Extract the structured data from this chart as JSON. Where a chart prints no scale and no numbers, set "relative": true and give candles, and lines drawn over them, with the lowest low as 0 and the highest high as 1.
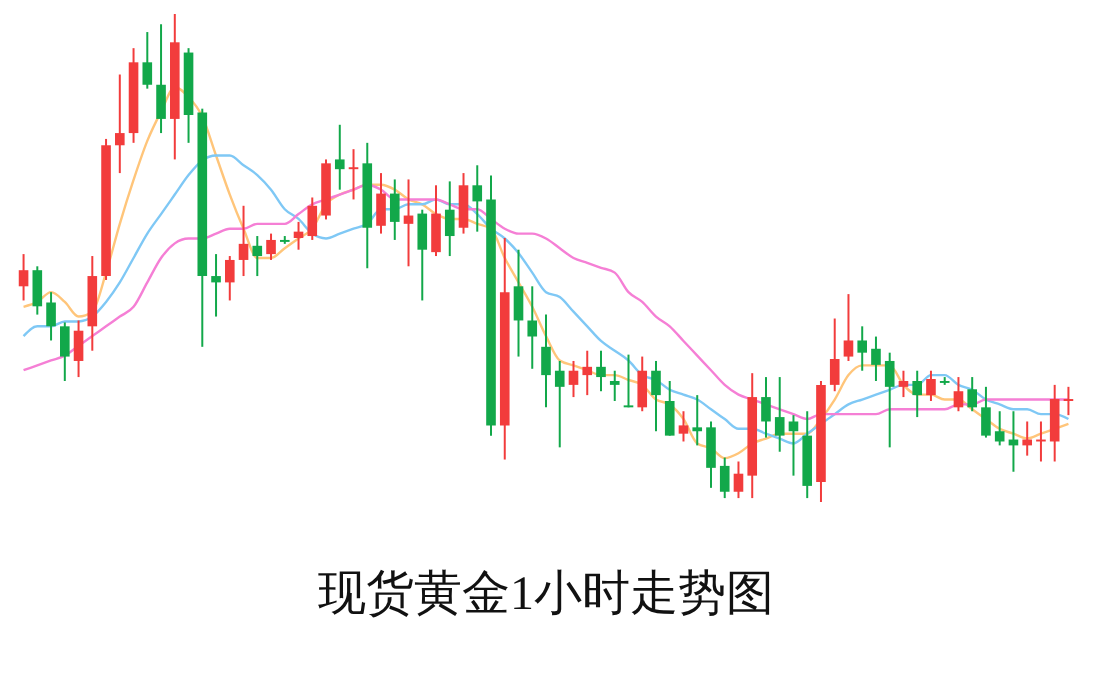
{
  "chart_data": {
    "type": "candlestick",
    "relative": true,
    "title": "现货黄金1小时走势图",
    "categories": [
      null,
      null,
      null,
      null,
      null,
      null,
      null,
      null,
      null,
      null,
      null,
      null,
      null,
      null,
      null,
      null,
      null,
      null,
      null,
      null,
      null,
      null,
      null,
      null,
      null,
      null,
      null,
      null,
      null,
      null,
      null,
      null,
      null,
      null,
      null,
      null,
      null,
      null,
      null,
      null,
      null,
      null,
      null,
      null,
      null,
      null,
      null,
      null,
      null,
      null,
      null,
      null,
      null,
      null,
      null,
      null,
      null,
      null,
      null,
      null,
      null,
      null,
      null,
      null,
      null,
      null,
      null,
      null,
      null,
      null,
      null,
      null,
      null,
      null,
      null,
      null,
      null
    ],
    "ohlc": [
      [
        0.442,
        0.508,
        0.413,
        0.475
      ],
      [
        0.475,
        0.483,
        0.384,
        0.401
      ],
      [
        0.409,
        0.43,
        0.331,
        0.36
      ],
      [
        0.36,
        0.368,
        0.248,
        0.298
      ],
      [
        0.289,
        0.372,
        0.256,
        0.351
      ],
      [
        0.36,
        0.504,
        0.31,
        0.463
      ],
      [
        0.463,
        0.744,
        0.455,
        0.731
      ],
      [
        0.731,
        0.876,
        0.674,
        0.756
      ],
      [
        0.756,
        0.93,
        0.736,
        0.901
      ],
      [
        0.901,
        0.963,
        0.847,
        0.855
      ],
      [
        0.855,
        0.979,
        0.756,
        0.785
      ],
      [
        0.785,
        1.0,
        0.702,
        0.942
      ],
      [
        0.921,
        0.93,
        0.736,
        0.793
      ],
      [
        0.798,
        0.806,
        0.318,
        0.463
      ],
      [
        0.463,
        0.508,
        0.38,
        0.45
      ],
      [
        0.45,
        0.504,
        0.413,
        0.496
      ],
      [
        0.496,
        0.607,
        0.463,
        0.529
      ],
      [
        0.525,
        0.545,
        0.463,
        0.504
      ],
      [
        0.508,
        0.55,
        0.496,
        0.537
      ],
      [
        0.537,
        0.545,
        0.529,
        0.533
      ],
      [
        0.541,
        0.574,
        0.517,
        0.554
      ],
      [
        0.545,
        0.624,
        0.537,
        0.607
      ],
      [
        0.587,
        0.702,
        0.579,
        0.694
      ],
      [
        0.702,
        0.773,
        0.64,
        0.682
      ],
      [
        0.682,
        0.723,
        0.62,
        0.686
      ],
      [
        0.694,
        0.736,
        0.479,
        0.562
      ],
      [
        0.566,
        0.674,
        0.55,
        0.632
      ],
      [
        0.632,
        0.661,
        0.537,
        0.574
      ],
      [
        0.57,
        0.661,
        0.483,
        0.587
      ],
      [
        0.591,
        0.599,
        0.413,
        0.517
      ],
      [
        0.512,
        0.649,
        0.504,
        0.591
      ],
      [
        0.599,
        0.657,
        0.504,
        0.545
      ],
      [
        0.562,
        0.674,
        0.55,
        0.649
      ],
      [
        0.649,
        0.69,
        0.554,
        0.616
      ],
      [
        0.62,
        0.669,
        0.136,
        0.157
      ],
      [
        0.157,
        0.541,
        0.087,
        0.43
      ],
      [
        0.442,
        0.517,
        0.298,
        0.372
      ],
      [
        0.372,
        0.442,
        0.273,
        0.339
      ],
      [
        0.318,
        0.384,
        0.194,
        0.26
      ],
      [
        0.269,
        0.289,
        0.112,
        0.236
      ],
      [
        0.24,
        0.289,
        0.215,
        0.269
      ],
      [
        0.26,
        0.31,
        0.219,
        0.277
      ],
      [
        0.277,
        0.31,
        0.227,
        0.256
      ],
      [
        0.248,
        0.269,
        0.207,
        0.24
      ],
      [
        0.198,
        0.302,
        0.194,
        0.194
      ],
      [
        0.194,
        0.298,
        0.186,
        0.269
      ],
      [
        0.269,
        0.289,
        0.145,
        0.219
      ],
      [
        0.207,
        0.248,
        0.136,
        0.136
      ],
      [
        0.14,
        0.186,
        0.124,
        0.157
      ],
      [
        0.153,
        0.219,
        0.116,
        0.145
      ],
      [
        0.153,
        0.165,
        0.029,
        0.07
      ],
      [
        0.074,
        0.091,
        0.008,
        0.021
      ],
      [
        0.021,
        0.083,
        0.008,
        0.058
      ],
      [
        0.054,
        0.264,
        0.008,
        0.215
      ],
      [
        0.215,
        0.256,
        0.132,
        0.165
      ],
      [
        0.174,
        0.256,
        0.103,
        0.136
      ],
      [
        0.165,
        0.178,
        0.054,
        0.145
      ],
      [
        0.136,
        0.186,
        0.008,
        0.033
      ],
      [
        0.041,
        0.248,
        0.0,
        0.24
      ],
      [
        0.24,
        0.376,
        0.227,
        0.293
      ],
      [
        0.298,
        0.426,
        0.289,
        0.331
      ],
      [
        0.331,
        0.36,
        0.269,
        0.306
      ],
      [
        0.314,
        0.339,
        0.248,
        0.281
      ],
      [
        0.289,
        0.306,
        0.112,
        0.236
      ],
      [
        0.236,
        0.269,
        0.215,
        0.248
      ],
      [
        0.248,
        0.269,
        0.174,
        0.219
      ],
      [
        0.219,
        0.269,
        0.207,
        0.252
      ],
      [
        0.248,
        0.256,
        0.24,
        0.244
      ],
      [
        0.194,
        0.256,
        0.186,
        0.227
      ],
      [
        0.231,
        0.256,
        0.186,
        0.194
      ],
      [
        0.194,
        0.236,
        0.132,
        0.136
      ],
      [
        0.145,
        0.186,
        0.116,
        0.124
      ],
      [
        0.128,
        0.186,
        0.062,
        0.116
      ],
      [
        0.116,
        0.165,
        0.095,
        0.128
      ],
      [
        0.124,
        0.165,
        0.083,
        0.128
      ],
      [
        0.124,
        0.24,
        0.083,
        0.211
      ],
      [
        0.207,
        0.236,
        0.178,
        0.211
      ]
    ],
    "colors": [
      "#f23c3c",
      "#12a84a",
      "#12a84a",
      "#12a84a",
      "#f23c3c",
      "#f23c3c",
      "#f23c3c",
      "#f23c3c",
      "#f23c3c",
      "#12a84a",
      "#12a84a",
      "#f23c3c",
      "#12a84a",
      "#12a84a",
      "#12a84a",
      "#f23c3c",
      "#f23c3c",
      "#12a84a",
      "#f23c3c",
      "#12a84a",
      "#f23c3c",
      "#f23c3c",
      "#f23c3c",
      "#12a84a",
      "#f23c3c",
      "#12a84a",
      "#f23c3c",
      "#12a84a",
      "#f23c3c",
      "#12a84a",
      "#f23c3c",
      "#12a84a",
      "#f23c3c",
      "#12a84a",
      "#12a84a",
      "#f23c3c",
      "#12a84a",
      "#12a84a",
      "#12a84a",
      "#12a84a",
      "#f23c3c",
      "#f23c3c",
      "#12a84a",
      "#12a84a",
      "#12a84a",
      "#f23c3c",
      "#12a84a",
      "#12a84a",
      "#f23c3c",
      "#12a84a",
      "#12a84a",
      "#12a84a",
      "#f23c3c",
      "#f23c3c",
      "#12a84a",
      "#12a84a",
      "#12a84a",
      "#12a84a",
      "#f23c3c",
      "#f23c3c",
      "#f23c3c",
      "#12a84a",
      "#12a84a",
      "#12a84a",
      "#f23c3c",
      "#12a84a",
      "#f23c3c",
      "#12a84a",
      "#f23c3c",
      "#12a84a",
      "#12a84a",
      "#12a84a",
      "#12a84a",
      "#f23c3c",
      "#f23c3c",
      "#f23c3c",
      "#f23c3c"
    ],
    "series": [
      {
        "type": "line",
        "color": "#ffc57a",
        "values": [
          0.4,
          0.41,
          0.43,
          0.41,
          0.38,
          0.39,
          0.47,
          0.57,
          0.66,
          0.74,
          0.8,
          0.85,
          0.83,
          0.79,
          0.71,
          0.63,
          0.56,
          0.5,
          0.5,
          0.52,
          0.54,
          0.56,
          0.61,
          0.63,
          0.64,
          0.65,
          0.65,
          0.64,
          0.62,
          0.61,
          0.59,
          0.58,
          0.58,
          0.57,
          0.56,
          0.5,
          0.45,
          0.4,
          0.34,
          0.29,
          0.28,
          0.27,
          0.26,
          0.26,
          0.25,
          0.24,
          0.21,
          0.2,
          0.17,
          0.12,
          0.11,
          0.09,
          0.1,
          0.12,
          0.13,
          0.14,
          0.14,
          0.14,
          0.17,
          0.21,
          0.26,
          0.28,
          0.28,
          0.28,
          0.24,
          0.22,
          0.22,
          0.21,
          0.21,
          0.19,
          0.17,
          0.15,
          0.14,
          0.13,
          0.14,
          0.15,
          0.16
        ]
      },
      {
        "type": "line",
        "color": "#7fc8f5",
        "values": [
          0.34,
          0.36,
          0.36,
          0.37,
          0.37,
          0.38,
          0.41,
          0.45,
          0.5,
          0.55,
          0.59,
          0.63,
          0.67,
          0.7,
          0.71,
          0.71,
          0.69,
          0.67,
          0.64,
          0.6,
          0.58,
          0.55,
          0.54,
          0.55,
          0.56,
          0.57,
          0.6,
          0.6,
          0.61,
          0.61,
          0.62,
          0.61,
          0.61,
          0.59,
          0.56,
          0.54,
          0.51,
          0.47,
          0.43,
          0.42,
          0.39,
          0.36,
          0.33,
          0.31,
          0.29,
          0.26,
          0.25,
          0.23,
          0.22,
          0.21,
          0.19,
          0.17,
          0.15,
          0.15,
          0.14,
          0.13,
          0.12,
          0.14,
          0.16,
          0.18,
          0.2,
          0.21,
          0.22,
          0.23,
          0.24,
          0.24,
          0.26,
          0.26,
          0.24,
          0.23,
          0.21,
          0.2,
          0.19,
          0.19,
          0.18,
          0.18,
          0.17
        ]
      },
      {
        "type": "line",
        "color": "#f57fd5",
        "values": [
          0.27,
          0.28,
          0.29,
          0.3,
          0.32,
          0.34,
          0.36,
          0.38,
          0.4,
          0.45,
          0.5,
          0.53,
          0.54,
          0.54,
          0.55,
          0.56,
          0.56,
          0.57,
          0.57,
          0.57,
          0.59,
          0.61,
          0.62,
          0.63,
          0.64,
          0.65,
          0.64,
          0.62,
          0.62,
          0.62,
          0.62,
          0.61,
          0.6,
          0.6,
          0.58,
          0.56,
          0.55,
          0.55,
          0.54,
          0.52,
          0.5,
          0.49,
          0.48,
          0.47,
          0.43,
          0.41,
          0.38,
          0.36,
          0.33,
          0.3,
          0.27,
          0.24,
          0.22,
          0.21,
          0.2,
          0.19,
          0.18,
          0.17,
          0.18,
          0.18,
          0.18,
          0.18,
          0.18,
          0.19,
          0.19,
          0.19,
          0.19,
          0.19,
          0.2,
          0.2,
          0.21,
          0.21,
          0.21,
          0.21,
          0.21,
          0.21,
          0.21
        ]
      }
    ]
  }
}
